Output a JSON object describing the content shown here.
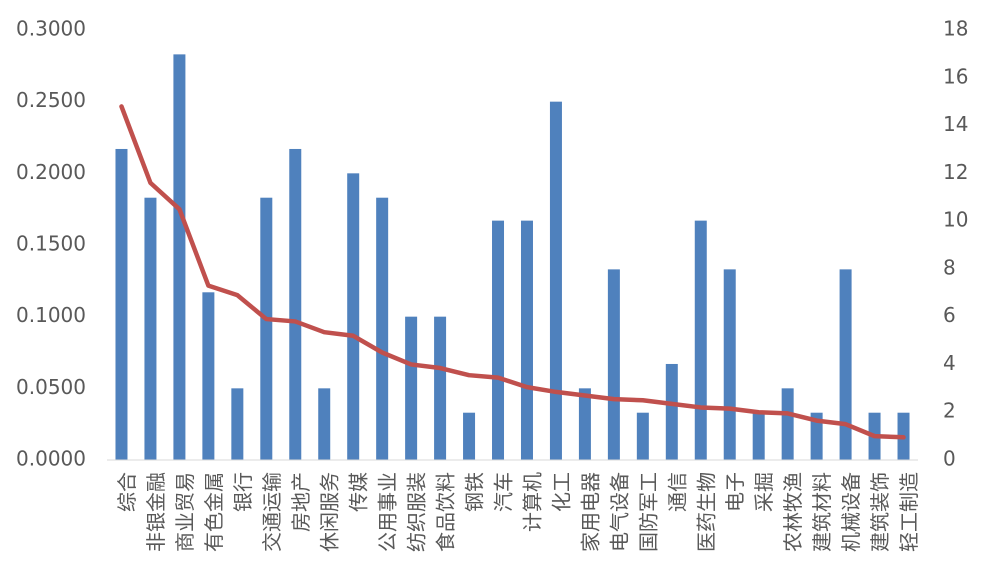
{
  "chart_data": {
    "type": "combo",
    "categories": [
      "综合",
      "非银金融",
      "商业贸易",
      "有色金属",
      "银行",
      "交通运输",
      "房地产",
      "休闲服务",
      "传媒",
      "公用事业",
      "纺织服装",
      "食品饮料",
      "钢铁",
      "汽车",
      "计算机",
      "化工",
      "家用电器",
      "电气设备",
      "国防军工",
      "通信",
      "医药生物",
      "电子",
      "采掘",
      "农林牧渔",
      "建筑材料",
      "机械设备",
      "建筑装饰",
      "轻工制造"
    ],
    "series": [
      {
        "type": "bar",
        "color": "#4f81bd",
        "values": [
          0.217,
          0.183,
          0.283,
          0.117,
          0.05,
          0.183,
          0.217,
          0.05,
          0.2,
          0.183,
          0.1,
          0.1,
          0.033,
          0.167,
          0.167,
          0.25,
          0.05,
          0.133,
          0.033,
          0.067,
          0.167,
          0.133,
          0.033,
          0.05,
          0.033,
          0.133,
          0.033,
          0.033
        ]
      },
      {
        "type": "line",
        "color": "#c0504d",
        "axis": "y2",
        "values": [
          14.8,
          11.6,
          10.5,
          7.3,
          6.9,
          5.9,
          5.8,
          5.35,
          5.2,
          4.5,
          4.0,
          3.85,
          3.55,
          3.45,
          3.05,
          2.85,
          2.7,
          2.55,
          2.5,
          2.35,
          2.2,
          2.15,
          2.0,
          1.95,
          1.65,
          1.5,
          1.0,
          0.95
        ]
      }
    ],
    "ylim": [
      0,
      0.3
    ],
    "yticks": [
      {
        "value": 0,
        "label": "0.0000"
      },
      {
        "value": 0.05,
        "label": "0.0500"
      },
      {
        "value": 0.1,
        "label": "0.1000"
      },
      {
        "value": 0.15,
        "label": "0.1500"
      },
      {
        "value": 0.2,
        "label": "0.2000"
      },
      {
        "value": 0.25,
        "label": "0.2500"
      },
      {
        "value": 0.3,
        "label": "0.3000"
      }
    ],
    "y2lim": [
      0,
      18
    ],
    "y2ticks": [
      0,
      2,
      4,
      6,
      8,
      10,
      12,
      14,
      16,
      18
    ],
    "grid": false
  }
}
